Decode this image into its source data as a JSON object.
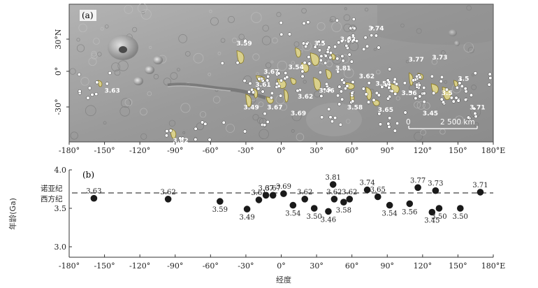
{
  "map_panel": {
    "label": "(a)",
    "lat_ticks": [
      "30°N",
      "0°",
      "-30°"
    ],
    "lat_values": [
      30,
      0,
      -30
    ],
    "scale_bar": {
      "zero": "0",
      "label": "2 500 km"
    },
    "lon_ticks": [
      "-180°",
      "-150°",
      "-120°",
      "-90°",
      "-60°",
      "-30°",
      "0°",
      "30°",
      "60°",
      "90°",
      "120°",
      "150°",
      "180°E"
    ],
    "age_labels": [
      {
        "text": "3.63",
        "lon": -150,
        "lat": -18
      },
      {
        "text": "3.59",
        "lon": -38,
        "lat": 24
      },
      {
        "text": "3.62",
        "lon": -92,
        "lat": -60
      },
      {
        "text": "3.67",
        "lon": -15,
        "lat": -2
      },
      {
        "text": "3.61",
        "lon": -22,
        "lat": -13
      },
      {
        "text": "3.49",
        "lon": -32,
        "lat": -32
      },
      {
        "text": "3.67",
        "lon": -12,
        "lat": -32
      },
      {
        "text": "3.69",
        "lon": 8,
        "lat": -37
      },
      {
        "text": "3.54",
        "lon": 6,
        "lat": 2
      },
      {
        "text": "3.62",
        "lon": 14,
        "lat": -23
      },
      {
        "text": "3.5",
        "lon": 28,
        "lat": 24
      },
      {
        "text": "3.62",
        "lon": 50,
        "lat": 28
      },
      {
        "text": "3.74",
        "lon": 74,
        "lat": 38
      },
      {
        "text": "3.81",
        "lon": 46,
        "lat": 1
      },
      {
        "text": "3.46",
        "lon": 32,
        "lat": -18
      },
      {
        "text": "3.62",
        "lon": 66,
        "lat": -6
      },
      {
        "text": "3.58",
        "lon": 56,
        "lat": -32
      },
      {
        "text": "3.54",
        "lon": 80,
        "lat": -12
      },
      {
        "text": "3.65",
        "lon": 82,
        "lat": -34
      },
      {
        "text": "3.56",
        "lon": 102,
        "lat": -20
      },
      {
        "text": "3.77",
        "lon": 108,
        "lat": 9
      },
      {
        "text": "3.73",
        "lon": 128,
        "lat": 11
      },
      {
        "text": "3.5",
        "lon": 150,
        "lat": -8
      },
      {
        "text": "3.5",
        "lon": 136,
        "lat": -20
      },
      {
        "text": "3.45",
        "lon": 120,
        "lat": -37
      },
      {
        "text": "3.71",
        "lon": 160,
        "lat": -32
      }
    ],
    "colors": {
      "terrain": "#9b9b9b",
      "deposit_fill": "#d9d08c",
      "deposit_edge": "#8a7a20",
      "crater_marker": "#ffffff"
    }
  },
  "chart_data": {
    "type": "scatter",
    "panel_label": "(b)",
    "xlabel": "经度",
    "ylabel": "年龄(Ga)",
    "xlim": [
      -180,
      180
    ],
    "ylim": [
      2.8,
      4.0
    ],
    "x_ticks": [
      "-180°",
      "-150°",
      "-120°",
      "-90°",
      "-60°",
      "-30°",
      "0°",
      "30°",
      "60°",
      "90°",
      "120°",
      "150°",
      "180°E"
    ],
    "x_tick_values": [
      -180,
      -150,
      -120,
      -90,
      -60,
      -30,
      0,
      30,
      60,
      90,
      120,
      150,
      180
    ],
    "y_ticks": [
      "3.0",
      "3.5",
      "4.0"
    ],
    "y_tick_values": [
      3.0,
      3.5,
      4.0
    ],
    "reference_line": {
      "value": 3.7,
      "label_above": "诺亚纪",
      "label_below": "西方纪",
      "style": "dashed"
    },
    "points": [
      {
        "x": -159,
        "y": 3.63,
        "label": "3.63"
      },
      {
        "x": -96,
        "y": 3.62,
        "label": "3.62"
      },
      {
        "x": -52,
        "y": 3.59,
        "label": "3.59"
      },
      {
        "x": -29,
        "y": 3.49,
        "label": "3.49"
      },
      {
        "x": -19,
        "y": 3.61,
        "label": "3.61"
      },
      {
        "x": -13,
        "y": 3.67,
        "label": "3.67"
      },
      {
        "x": -7,
        "y": 3.67,
        "label": "3.67"
      },
      {
        "x": 2,
        "y": 3.69,
        "label": "3.69"
      },
      {
        "x": 10,
        "y": 3.54,
        "label": "3.54"
      },
      {
        "x": 20,
        "y": 3.62,
        "label": "3.62"
      },
      {
        "x": 28,
        "y": 3.5,
        "label": "3.50"
      },
      {
        "x": 40,
        "y": 3.46,
        "label": "3.46"
      },
      {
        "x": 44,
        "y": 3.81,
        "label": "3.81"
      },
      {
        "x": 45,
        "y": 3.62,
        "label": "3.62"
      },
      {
        "x": 53,
        "y": 3.58,
        "label": "3.58"
      },
      {
        "x": 58,
        "y": 3.62,
        "label": "3.62"
      },
      {
        "x": 73,
        "y": 3.74,
        "label": "3.74"
      },
      {
        "x": 82,
        "y": 3.65,
        "label": "3.65"
      },
      {
        "x": 92,
        "y": 3.54,
        "label": "3.54"
      },
      {
        "x": 109,
        "y": 3.56,
        "label": "3.56"
      },
      {
        "x": 116,
        "y": 3.77,
        "label": "3.77"
      },
      {
        "x": 128,
        "y": 3.45,
        "label": "3.45"
      },
      {
        "x": 131,
        "y": 3.73,
        "label": "3.73"
      },
      {
        "x": 134,
        "y": 3.5,
        "label": "3.50"
      },
      {
        "x": 152,
        "y": 3.5,
        "label": "3.50"
      },
      {
        "x": 169,
        "y": 3.71,
        "label": "3.71"
      }
    ],
    "marker_color": "#1a1a1a",
    "line_color": "#888888"
  }
}
